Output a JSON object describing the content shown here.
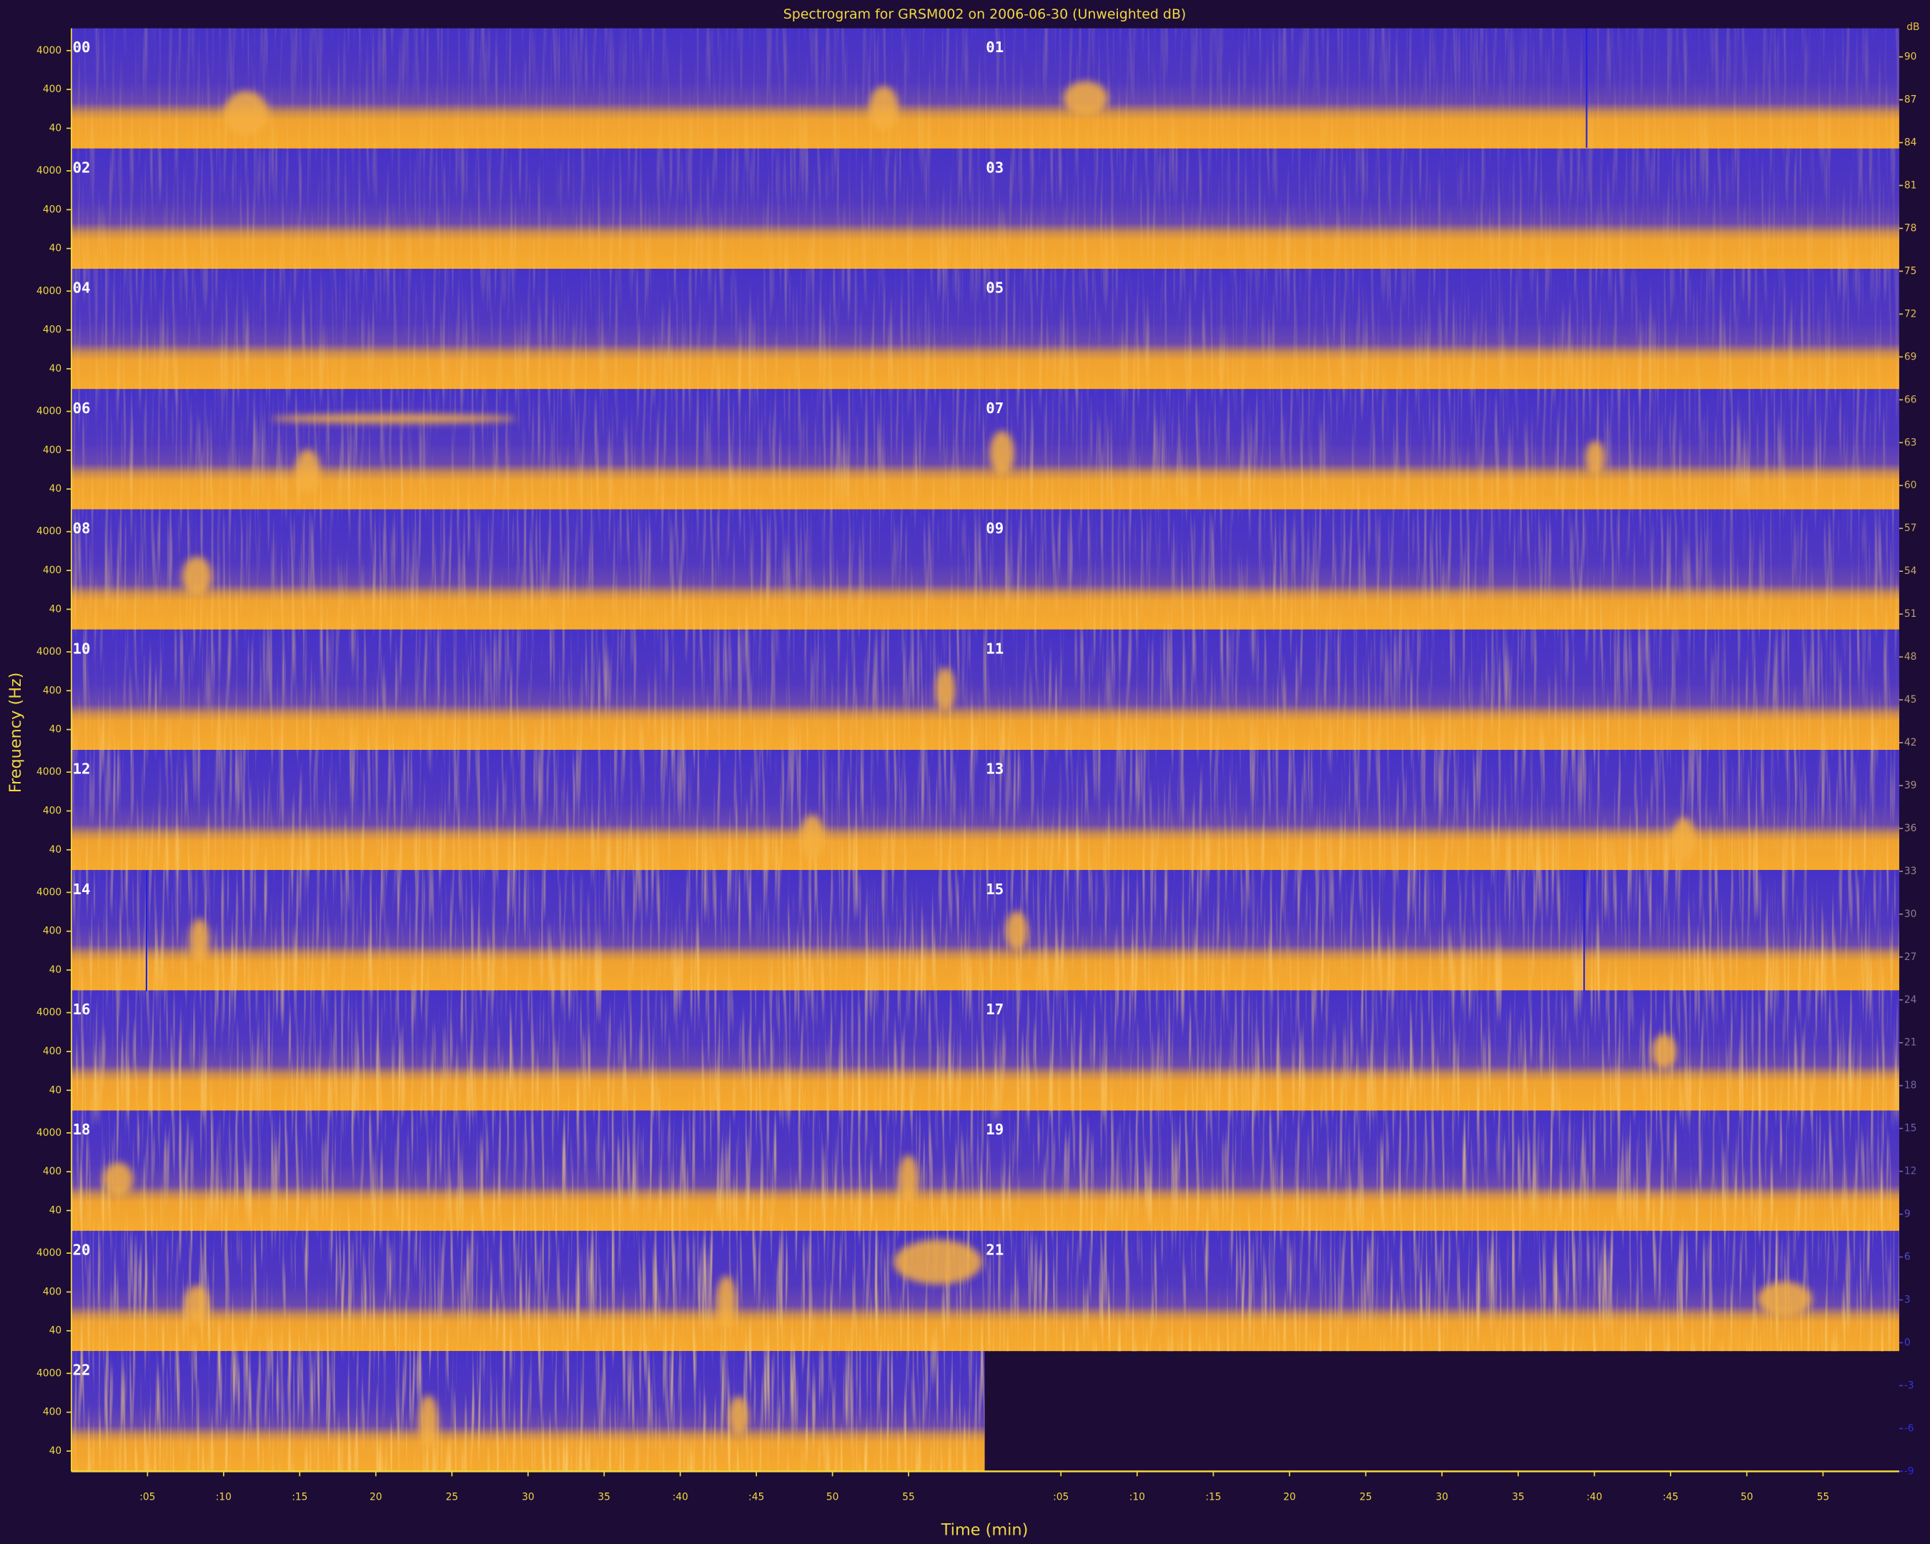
{
  "chart_data": {
    "type": "spectrogram",
    "title": "Spectrogram for GRSM002 on 2006-06-30 (Unweighted dB)",
    "x_label": "Time (min)",
    "y_label": "Frequency (Hz)",
    "panels": [
      "00",
      "01",
      "02",
      "03",
      "04",
      "05",
      "06",
      "07",
      "08",
      "09",
      "10",
      "11",
      "12",
      "13",
      "14",
      "15",
      "16",
      "17",
      "18",
      "19",
      "20",
      "21",
      "22"
    ],
    "xlim": [
      0,
      60
    ],
    "xticks": [
      {
        "value": 5,
        "label": ":05"
      },
      {
        "value": 10,
        "label": ":10"
      },
      {
        "value": 15,
        "label": ":15"
      },
      {
        "value": 20,
        "label": "20"
      },
      {
        "value": 25,
        "label": "25"
      },
      {
        "value": 30,
        "label": "30"
      },
      {
        "value": 35,
        "label": "35"
      },
      {
        "value": 40,
        "label": ":40"
      },
      {
        "value": 45,
        "label": ":45"
      },
      {
        "value": 50,
        "label": "50"
      },
      {
        "value": 55,
        "label": "55"
      }
    ],
    "yscale": "log",
    "ylim": [
      12,
      15000
    ],
    "yticks": [
      40,
      400,
      4000
    ],
    "colorbar": {
      "label": "dB",
      "clim": [
        -9,
        92
      ],
      "ticks": [
        90,
        87,
        84,
        81,
        78,
        75,
        72,
        69,
        66,
        63,
        60,
        57,
        54,
        51,
        48,
        45,
        42,
        39,
        36,
        33,
        30,
        27,
        24,
        21,
        18,
        15,
        12,
        9,
        6,
        3,
        0,
        -3,
        -6,
        -9
      ]
    }
  }
}
